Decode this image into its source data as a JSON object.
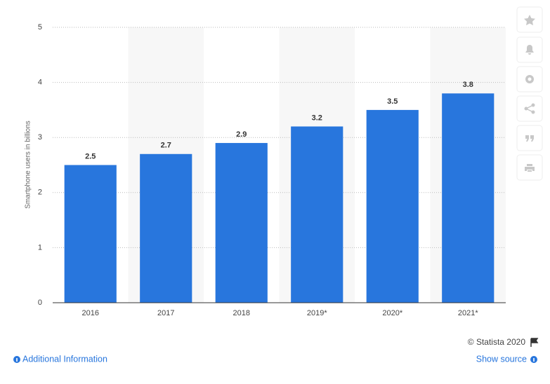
{
  "chart_data": {
    "type": "bar",
    "y_label": "Smartphone users in billions",
    "categories": [
      "2016",
      "2017",
      "2018",
      "2019*",
      "2020*",
      "2021*"
    ],
    "values": [
      2.5,
      2.7,
      2.9,
      3.2,
      3.5,
      3.8
    ],
    "color": "#2876dd",
    "ylim": [
      0,
      5
    ],
    "yticks": [
      0,
      1,
      2,
      3,
      4,
      5
    ],
    "grid": true
  },
  "footer": {
    "credit": "© Statista 2020",
    "info_link": "Additional Information",
    "source_link": "Show source"
  }
}
